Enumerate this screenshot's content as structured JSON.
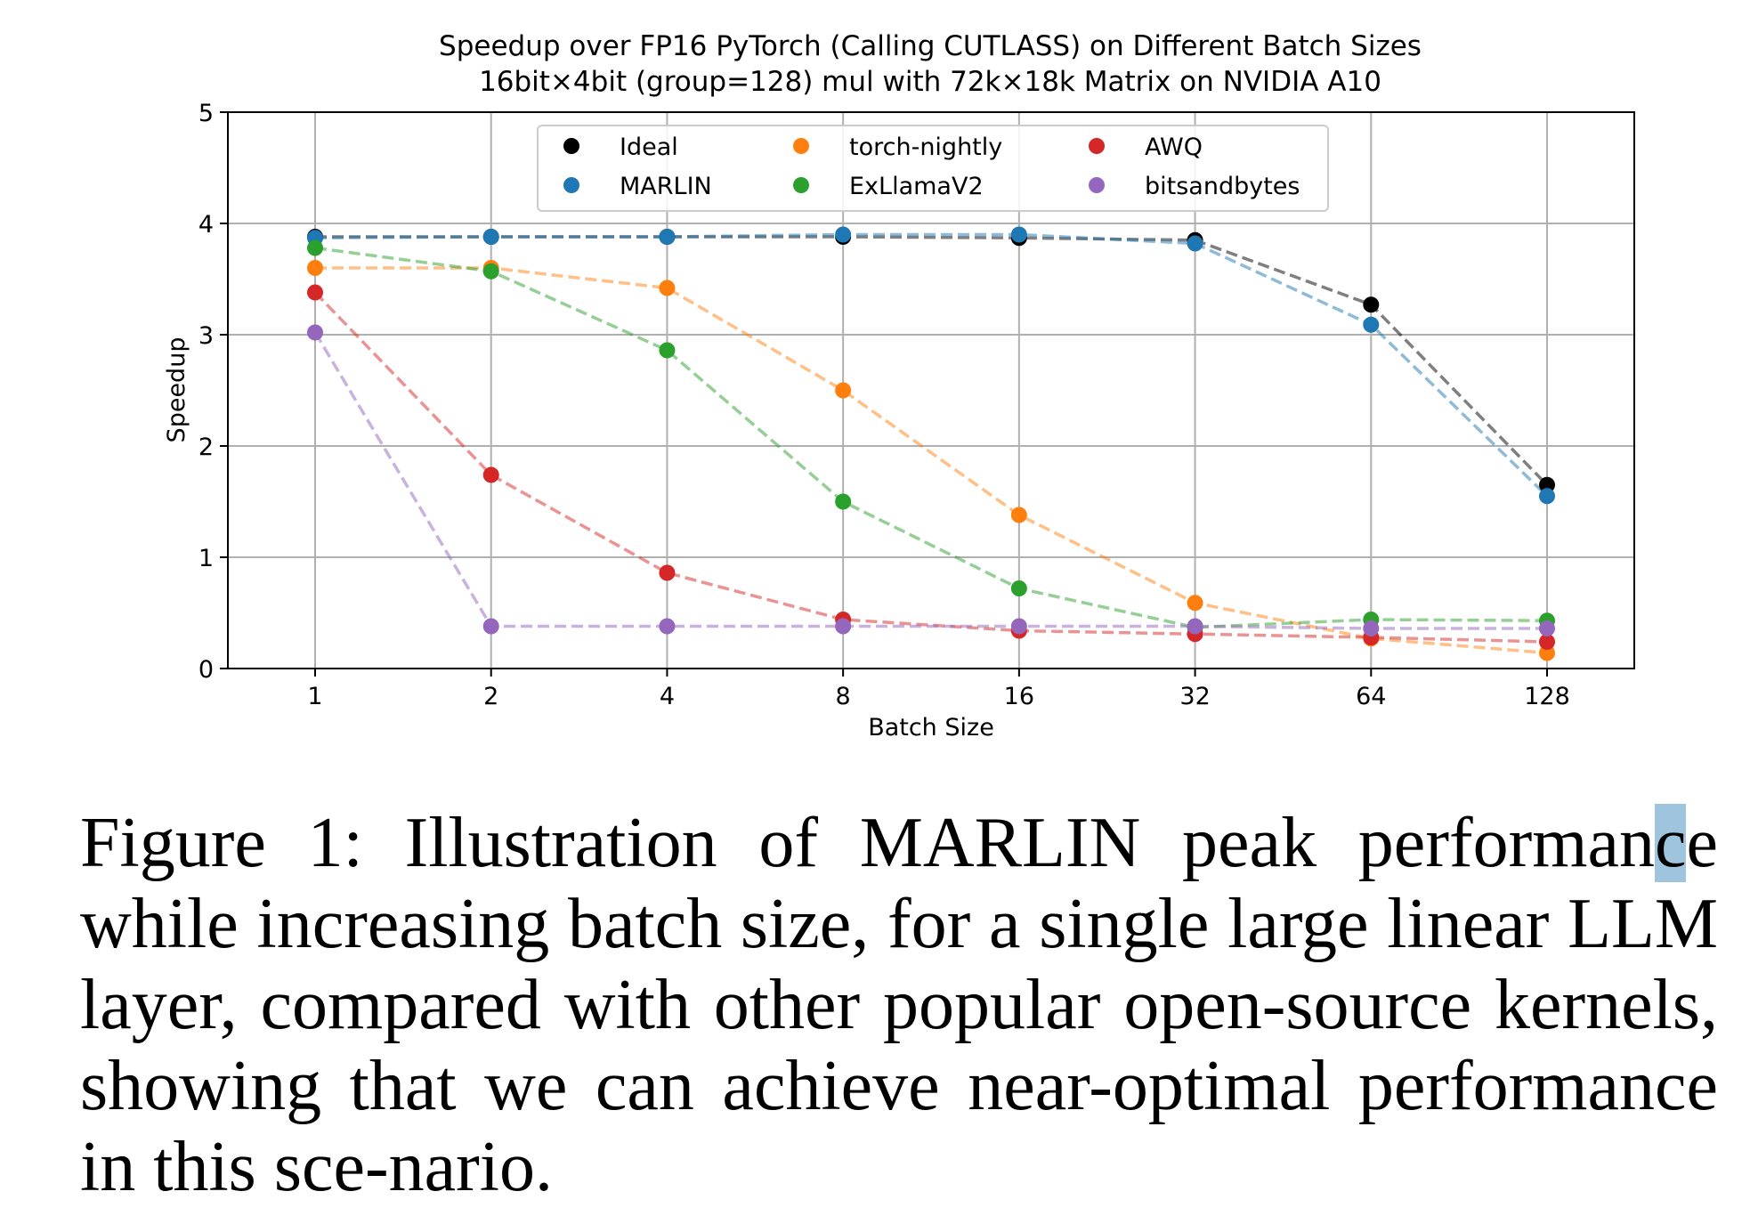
{
  "chart_data": {
    "type": "line",
    "title": "Speedup over FP16 PyTorch (Calling CUTLASS) on Different Batch Sizes",
    "subtitle": "16bit×4bit (group=128) mul with 72k×18k Matrix on NVIDIA A10",
    "xlabel": "Batch Size",
    "ylabel": "Speedup",
    "x_scale": "log2",
    "categories": [
      "1",
      "2",
      "4",
      "8",
      "16",
      "32",
      "64",
      "128"
    ],
    "ylim": [
      0,
      5
    ],
    "yticks": [
      "0",
      "1",
      "2",
      "3",
      "4",
      "5"
    ],
    "grid": true,
    "line_style": "dashed",
    "legend_placement": "top-center",
    "legend_columns": 3,
    "series": [
      {
        "name": "Ideal",
        "color": "#000000",
        "values": [
          3.88,
          3.88,
          3.88,
          3.88,
          3.87,
          3.85,
          3.27,
          1.65
        ]
      },
      {
        "name": "MARLIN",
        "color": "#1f77b4",
        "values": [
          3.87,
          3.88,
          3.88,
          3.9,
          3.9,
          3.82,
          3.09,
          1.55
        ]
      },
      {
        "name": "torch-nightly",
        "color": "#ff7f0e",
        "values": [
          3.6,
          3.6,
          3.42,
          2.5,
          1.38,
          0.59,
          0.27,
          0.14
        ]
      },
      {
        "name": "ExLlamaV2",
        "color": "#2ca02c",
        "values": [
          3.78,
          3.57,
          2.86,
          1.5,
          0.72,
          0.37,
          0.44,
          0.43
        ]
      },
      {
        "name": "AWQ",
        "color": "#d62728",
        "values": [
          3.38,
          1.74,
          0.86,
          0.44,
          0.34,
          0.31,
          0.28,
          0.24
        ]
      },
      {
        "name": "bitsandbytes",
        "color": "#9467bd",
        "values": [
          3.02,
          0.38,
          0.38,
          0.38,
          0.38,
          0.38,
          0.36,
          0.36
        ]
      }
    ]
  },
  "caption": {
    "before": "Figure 1: Illustration of MARLIN peak performan",
    "highlight": "c",
    "after": "e while increasing batch size, for a single large linear LLM layer, compared with other popular open-source kernels, showing that we can achieve near-optimal performance in this sce-­nario."
  }
}
